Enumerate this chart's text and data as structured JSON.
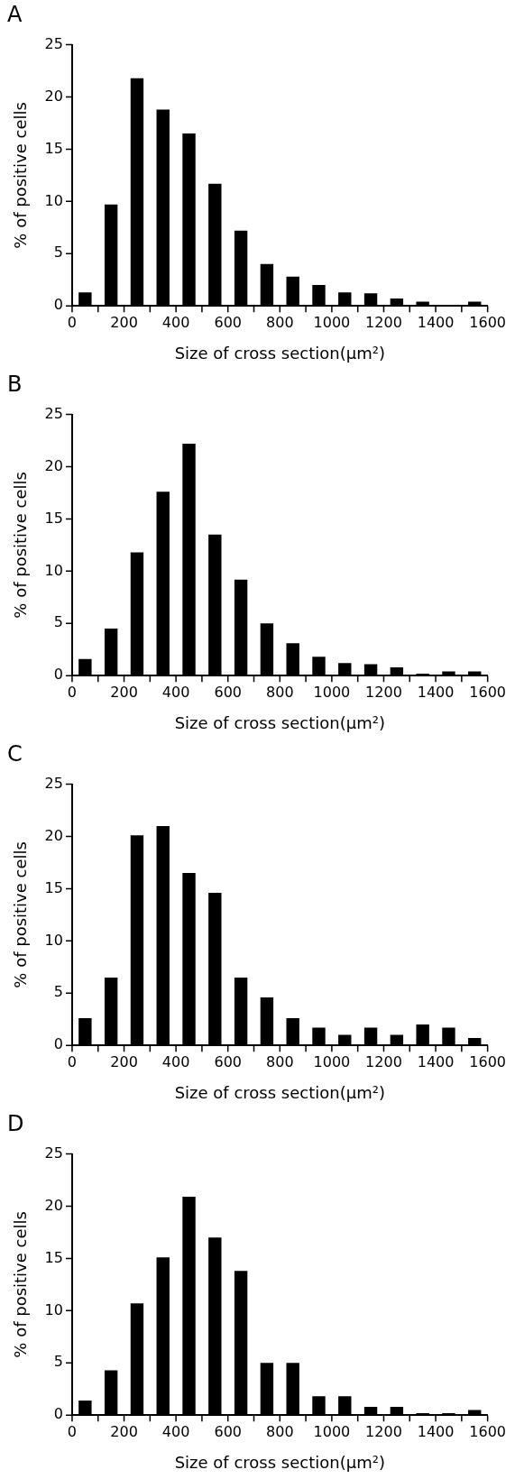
{
  "chart_data": [
    {
      "type": "histogram",
      "title": "A",
      "xlabel": "Size of cross section(µm²)",
      "ylabel": "% of positive cells",
      "color": "#000000",
      "grid": false,
      "legend": false,
      "bins": [
        0,
        100,
        200,
        300,
        400,
        500,
        600,
        700,
        800,
        900,
        1000,
        1100,
        1200,
        1300,
        1400,
        1500,
        1600
      ],
      "values": [
        1.3,
        9.7,
        21.8,
        18.8,
        16.5,
        11.7,
        7.2,
        4.0,
        2.8,
        2.0,
        1.3,
        1.2,
        0.7,
        0.4,
        0,
        0.4
      ],
      "xlim": [
        0,
        1600
      ],
      "xticks": [
        0,
        {
          "value": 100,
          "label": null
        },
        200,
        {
          "value": 300,
          "label": null
        },
        400,
        {
          "value": 500,
          "label": null
        },
        600,
        {
          "value": 700,
          "label": null
        },
        800,
        {
          "value": 900,
          "label": null
        },
        1000,
        {
          "value": 1100,
          "label": null
        },
        1200,
        {
          "value": 1300,
          "label": null
        },
        1400,
        {
          "value": 1500,
          "label": null
        },
        1600
      ],
      "ylim": [
        0,
        25
      ],
      "yticks": [
        0,
        5,
        10,
        15,
        20,
        25
      ]
    },
    {
      "type": "histogram",
      "title": "B",
      "xlabel": "Size of cross section(µm²)",
      "ylabel": "% of positive cells",
      "color": "#000000",
      "grid": false,
      "legend": false,
      "bins": [
        0,
        100,
        200,
        300,
        400,
        500,
        600,
        700,
        800,
        900,
        1000,
        1100,
        1200,
        1300,
        1400,
        1500,
        1600
      ],
      "values": [
        1.6,
        4.5,
        11.8,
        17.6,
        22.2,
        13.5,
        9.2,
        5.0,
        3.1,
        1.8,
        1.2,
        1.1,
        0.8,
        0.2,
        0.4,
        0.4
      ],
      "xlim": [
        0,
        1600
      ],
      "xticks": [
        0,
        {
          "value": 100,
          "label": null
        },
        200,
        {
          "value": 300,
          "label": null
        },
        400,
        {
          "value": 500,
          "label": null
        },
        600,
        {
          "value": 700,
          "label": null
        },
        800,
        {
          "value": 900,
          "label": null
        },
        1000,
        {
          "value": 1100,
          "label": null
        },
        1200,
        {
          "value": 1300,
          "label": null
        },
        1400,
        {
          "value": 1500,
          "label": null
        },
        1600
      ],
      "ylim": [
        0,
        25
      ],
      "yticks": [
        0,
        5,
        10,
        15,
        20,
        25
      ]
    },
    {
      "type": "histogram",
      "title": "C",
      "xlabel": "Size of cross section(µm²)",
      "ylabel": "% of positive cells",
      "color": "#000000",
      "grid": false,
      "legend": false,
      "bins": [
        0,
        100,
        200,
        300,
        400,
        500,
        600,
        700,
        800,
        900,
        1000,
        1100,
        1200,
        1300,
        1400,
        1500,
        1600
      ],
      "values": [
        2.6,
        6.5,
        20.1,
        21.0,
        16.5,
        14.6,
        6.5,
        4.6,
        2.6,
        1.7,
        1.0,
        1.7,
        1.0,
        2.0,
        1.7,
        0.7
      ],
      "xlim": [
        0,
        1600
      ],
      "xticks": [
        0,
        {
          "value": 100,
          "label": null
        },
        200,
        {
          "value": 300,
          "label": null
        },
        400,
        {
          "value": 500,
          "label": null
        },
        600,
        {
          "value": 700,
          "label": null
        },
        800,
        {
          "value": 900,
          "label": null
        },
        1000,
        {
          "value": 1100,
          "label": null
        },
        1200,
        {
          "value": 1300,
          "label": null
        },
        1400,
        {
          "value": 1500,
          "label": null
        },
        1600
      ],
      "ylim": [
        0,
        25
      ],
      "yticks": [
        0,
        5,
        10,
        15,
        20,
        25
      ]
    },
    {
      "type": "histogram",
      "title": "D",
      "xlabel": "Size of cross section(µm²)",
      "ylabel": "% of positive cells",
      "color": "#000000",
      "grid": false,
      "legend": false,
      "bins": [
        0,
        100,
        200,
        300,
        400,
        500,
        600,
        700,
        800,
        900,
        1000,
        1100,
        1200,
        1300,
        1400,
        1500,
        1600
      ],
      "values": [
        1.4,
        4.3,
        10.7,
        15.1,
        20.9,
        17.0,
        13.8,
        5.0,
        5.0,
        1.8,
        1.8,
        0.8,
        0.8,
        0.2,
        0.2,
        0.5
      ],
      "xlim": [
        0,
        1600
      ],
      "xticks": [
        0,
        {
          "value": 100,
          "label": null
        },
        200,
        {
          "value": 300,
          "label": null
        },
        400,
        {
          "value": 500,
          "label": null
        },
        600,
        {
          "value": 700,
          "label": null
        },
        800,
        {
          "value": 900,
          "label": null
        },
        1000,
        {
          "value": 1100,
          "label": null
        },
        1200,
        {
          "value": 1300,
          "label": null
        },
        1400,
        {
          "value": 1500,
          "label": null
        },
        1600
      ],
      "ylim": [
        0,
        25
      ],
      "yticks": [
        0,
        5,
        10,
        15,
        20,
        25
      ]
    }
  ]
}
